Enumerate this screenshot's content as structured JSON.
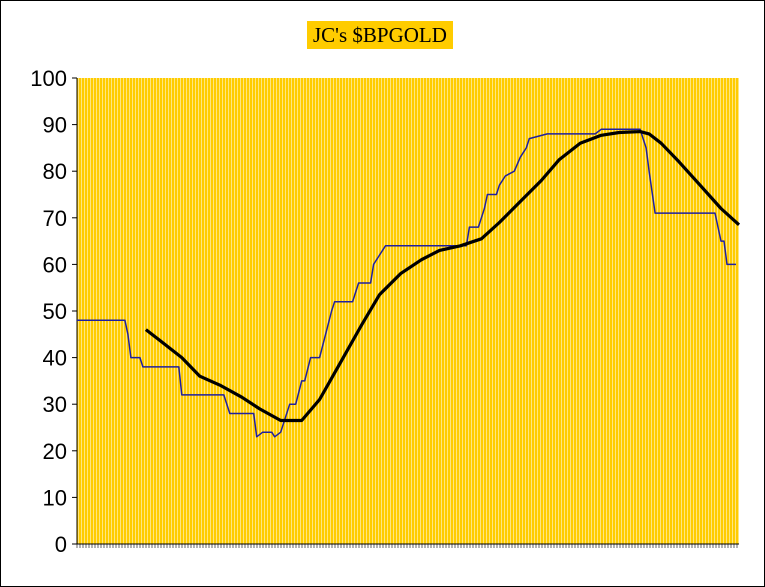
{
  "chart_data": {
    "type": "line",
    "title": "JC's $BPGOLD",
    "xlabel": "",
    "ylabel": "",
    "ylim": [
      0,
      100
    ],
    "xlim": [
      0,
      221
    ],
    "yticks": [
      "0",
      "10",
      "20",
      "30",
      "40",
      "50",
      "60",
      "70",
      "80",
      "90",
      "100"
    ],
    "x_tick_labels_legible": false,
    "grid": "vertical stripes",
    "legend": "none",
    "colors": {
      "background": "#FFCC00",
      "stripe": "#FFE680",
      "step_line": "#1F1F9F",
      "smooth_line": "#000000"
    },
    "series": [
      {
        "style": "thin-step",
        "points": [
          [
            0,
            48
          ],
          [
            16,
            48
          ],
          [
            17,
            45
          ],
          [
            18,
            40
          ],
          [
            21,
            40
          ],
          [
            22,
            38
          ],
          [
            34,
            38
          ],
          [
            35,
            32
          ],
          [
            49,
            32
          ],
          [
            51,
            28
          ],
          [
            59,
            28
          ],
          [
            60,
            23
          ],
          [
            62,
            24
          ],
          [
            65,
            24
          ],
          [
            66,
            23
          ],
          [
            68,
            24
          ],
          [
            71,
            30
          ],
          [
            73,
            30
          ],
          [
            75,
            35
          ],
          [
            76,
            35
          ],
          [
            78,
            40
          ],
          [
            81,
            40
          ],
          [
            83,
            45
          ],
          [
            85,
            50
          ],
          [
            86,
            52
          ],
          [
            92,
            52
          ],
          [
            93,
            54
          ],
          [
            94,
            56
          ],
          [
            98,
            56
          ],
          [
            99,
            60
          ],
          [
            101,
            62
          ],
          [
            103,
            64
          ],
          [
            130,
            64
          ],
          [
            131,
            68
          ],
          [
            134,
            68
          ],
          [
            135,
            70
          ],
          [
            136,
            72
          ],
          [
            137,
            75
          ],
          [
            140,
            75
          ],
          [
            141,
            77
          ],
          [
            143,
            79
          ],
          [
            146,
            80
          ],
          [
            148,
            83
          ],
          [
            150,
            85
          ],
          [
            151,
            87
          ],
          [
            157,
            88
          ],
          [
            173,
            88
          ],
          [
            175,
            89
          ],
          [
            188,
            89
          ],
          [
            190,
            85
          ],
          [
            191,
            80
          ],
          [
            193,
            71
          ],
          [
            213,
            71
          ],
          [
            215,
            65
          ],
          [
            216,
            65
          ],
          [
            217,
            60
          ],
          [
            220,
            60
          ]
        ]
      },
      {
        "style": "thick-smooth",
        "points": [
          [
            23,
            46
          ],
          [
            28,
            43.5
          ],
          [
            35,
            40
          ],
          [
            41,
            36
          ],
          [
            48,
            34
          ],
          [
            55,
            31.5
          ],
          [
            61,
            29
          ],
          [
            68,
            26.5
          ],
          [
            75,
            26.5
          ],
          [
            81,
            31
          ],
          [
            88,
            39
          ],
          [
            95,
            47
          ],
          [
            101,
            53.5
          ],
          [
            108,
            58
          ],
          [
            115,
            61
          ],
          [
            121,
            63
          ],
          [
            128,
            64
          ],
          [
            135,
            65.5
          ],
          [
            141,
            69
          ],
          [
            148,
            73.5
          ],
          [
            155,
            78
          ],
          [
            161,
            82.5
          ],
          [
            168,
            86
          ],
          [
            175,
            87.7
          ],
          [
            181,
            88.3
          ],
          [
            188,
            88.5
          ],
          [
            191,
            88
          ],
          [
            195,
            86
          ],
          [
            201,
            82
          ],
          [
            208,
            77
          ],
          [
            215,
            72
          ],
          [
            221,
            68.5
          ]
        ]
      }
    ]
  }
}
